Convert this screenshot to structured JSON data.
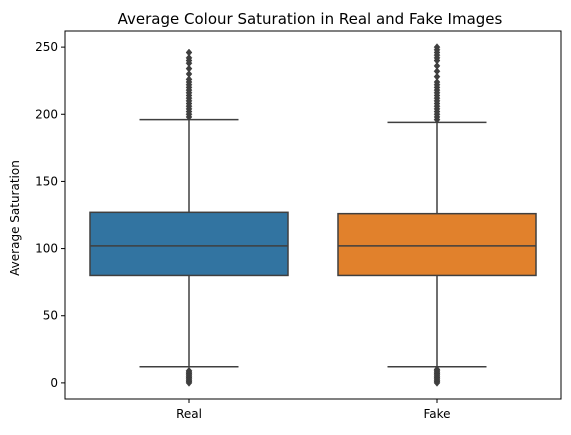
{
  "chart_data": {
    "type": "box",
    "title": "Average Colour Saturation in Real and Fake Images",
    "xlabel": "",
    "ylabel": "Average Saturation",
    "ylim": [
      -12,
      262
    ],
    "yticks": [
      0,
      50,
      100,
      150,
      200,
      250
    ],
    "categories": [
      "Real",
      "Fake"
    ],
    "grid": false,
    "colors": {
      "Real": "#3274a1",
      "Fake": "#e1812c",
      "line": "#3f3f3f"
    },
    "boxes": [
      {
        "name": "Real",
        "whisker_low": 12,
        "q1": 80,
        "median": 102,
        "q3": 127,
        "whisker_high": 196,
        "outliers_low": [
          0,
          1,
          2,
          3,
          4,
          5,
          6,
          7,
          8,
          9
        ],
        "outliers_high": [
          198,
          200,
          202,
          204,
          206,
          208,
          210,
          212,
          214,
          216,
          218,
          220,
          222,
          224,
          226,
          230,
          234,
          238,
          240,
          242,
          246
        ]
      },
      {
        "name": "Fake",
        "whisker_low": 12,
        "q1": 80,
        "median": 102,
        "q3": 126,
        "whisker_high": 194,
        "outliers_low": [
          0,
          1,
          2,
          3,
          4,
          5,
          6,
          7,
          8,
          9,
          10
        ],
        "outliers_high": [
          196,
          198,
          200,
          202,
          204,
          206,
          208,
          210,
          212,
          214,
          216,
          218,
          220,
          222,
          224,
          228,
          232,
          236,
          240,
          242,
          244,
          246,
          248,
          250
        ]
      }
    ]
  }
}
